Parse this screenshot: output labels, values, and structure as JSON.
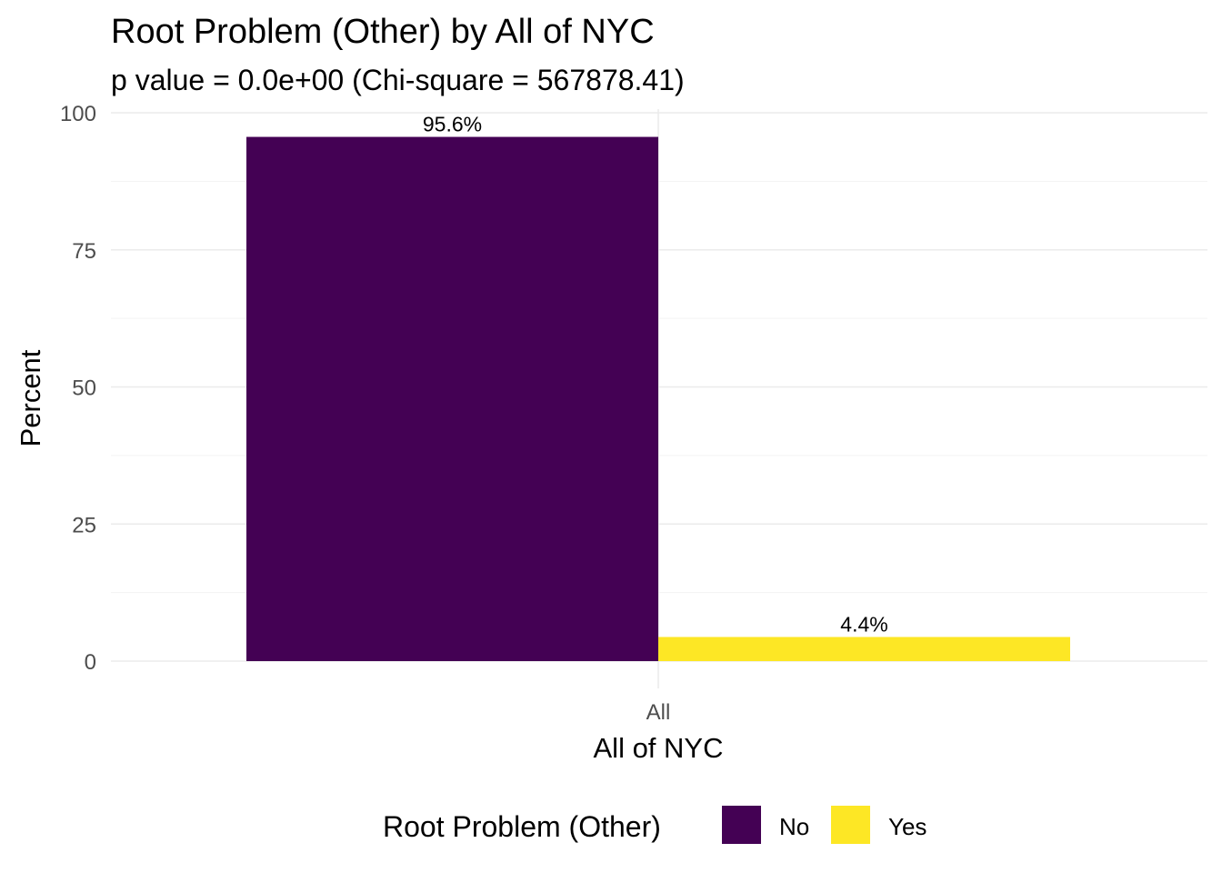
{
  "chart_data": {
    "type": "bar",
    "title": "Root Problem (Other) by All of NYC",
    "subtitle": "p value = 0.0e+00 (Chi-square = 567878.41)",
    "xlabel": "All of NYC",
    "ylabel": "Percent",
    "categories": [
      "All"
    ],
    "series": [
      {
        "name": "No",
        "values": [
          95.6
        ],
        "label": "95.6%",
        "color": "#440154"
      },
      {
        "name": "Yes",
        "values": [
          4.4
        ],
        "label": "4.4%",
        "color": "#FDE725"
      }
    ],
    "ylim": [
      0,
      100
    ],
    "yticks": [
      0,
      25,
      50,
      75,
      100
    ],
    "ytick_labels": [
      "0",
      "25",
      "50",
      "75",
      "100"
    ],
    "grid": true,
    "legend": {
      "title": "Root Problem (Other)",
      "position": "bottom"
    }
  }
}
